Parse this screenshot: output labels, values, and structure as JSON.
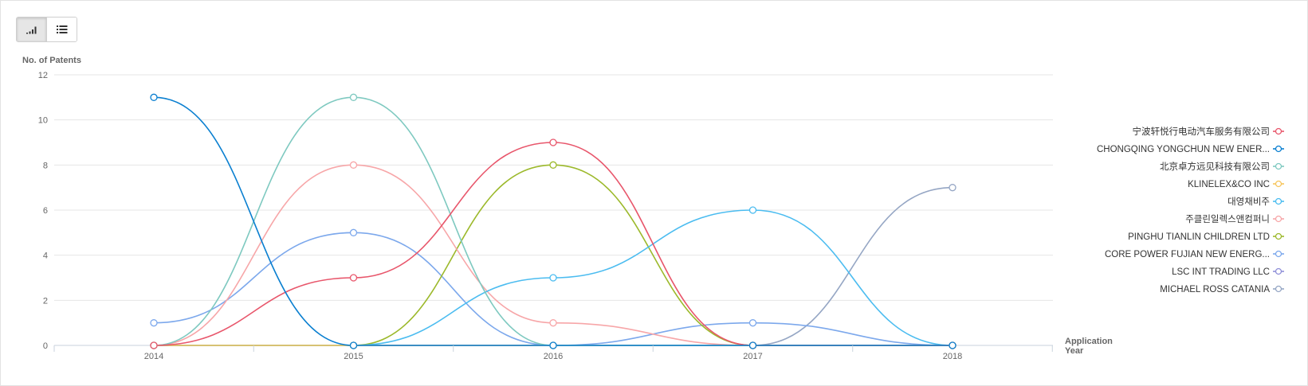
{
  "toolbar": {
    "chart_view_icon": "bar-chart-icon",
    "list_view_icon": "list-icon"
  },
  "chart_data": {
    "type": "line",
    "title": "",
    "ylabel": "No. of Patents",
    "xlabel_lines": [
      "Application",
      "Year"
    ],
    "x": [
      "2014",
      "2015",
      "2016",
      "2017",
      "2018"
    ],
    "ylim": [
      0,
      12
    ],
    "yticks": [
      0,
      2,
      4,
      6,
      8,
      10,
      12
    ],
    "grid": true,
    "legend_position": "right",
    "series": [
      {
        "name": "宁波轩悦行电动汽车服务有限公司",
        "color": "#e8566b",
        "values": [
          0,
          3,
          9,
          0,
          0
        ]
      },
      {
        "name": "CHONGQING YONGCHUN NEW ENER...",
        "color": "#0a7fd0",
        "values": [
          11,
          0,
          0,
          0,
          0
        ]
      },
      {
        "name": "北京卓方远见科技有限公司",
        "color": "#7ec9c0",
        "values": [
          0,
          11,
          0,
          0,
          0
        ]
      },
      {
        "name": "KLINELEX&CO INC",
        "color": "#f7c55c",
        "values": [
          0,
          0,
          0,
          0,
          0
        ]
      },
      {
        "name": "대영채비주",
        "color": "#4bbcf0",
        "values": [
          0,
          0,
          3,
          6,
          0
        ]
      },
      {
        "name": "주클린일렉스앤컴퍼니",
        "color": "#f7a6a8",
        "values": [
          0,
          8,
          1,
          0,
          0
        ]
      },
      {
        "name": "PINGHU TIANLIN CHILDREN LTD",
        "color": "#9cb92b",
        "values": [
          0,
          0,
          8,
          0,
          0
        ]
      },
      {
        "name": "CORE POWER FUJIAN NEW ENERG...",
        "color": "#7ca8ec",
        "values": [
          1,
          5,
          0,
          1,
          0
        ]
      },
      {
        "name": "LSC INT TRADING LLC",
        "color": "#8f8fd8",
        "values": [
          0,
          0,
          0,
          0,
          0
        ]
      },
      {
        "name": "MICHAEL ROSS CATANIA",
        "color": "#95a6c4",
        "values": [
          0,
          0,
          0,
          0,
          7
        ]
      }
    ]
  }
}
